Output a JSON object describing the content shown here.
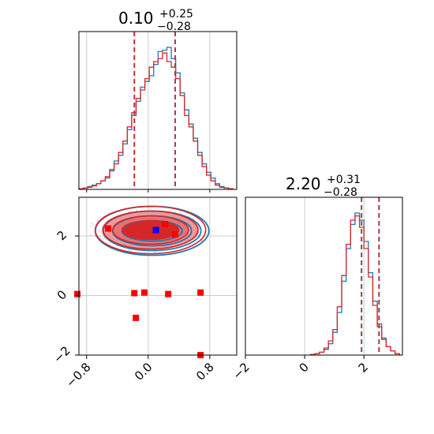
{
  "chart_data": {
    "type": "scatter",
    "kind": "corner-plot",
    "parameters": [
      {
        "median": 0.1,
        "title_main": "0.10",
        "title_plus": "+0.25",
        "title_minus": "−0.28",
        "quantile_lines": [
          -0.18,
          0.35
        ],
        "range": [
          -0.9,
          1.15
        ],
        "ticks": [
          -0.8,
          0.0,
          0.8
        ],
        "tick_labels": [
          "−0.8",
          "0.0",
          "0.8"
        ]
      },
      {
        "median": 2.2,
        "title_main": "2.20",
        "title_plus": "+0.31",
        "title_minus": "−0.28",
        "quantile_lines": [
          1.92,
          2.51
        ],
        "range": [
          -2.0,
          3.3
        ],
        "ticks": [
          -2,
          0,
          2
        ],
        "tick_labels": [
          "−2",
          "0",
          "2"
        ]
      }
    ],
    "series": [
      {
        "name": "",
        "color": "#1f77b4",
        "hist1": [
          0.5,
          1,
          2,
          3,
          4,
          6,
          8,
          13,
          20,
          24,
          32,
          42,
          52,
          62,
          72,
          76,
          80,
          88,
          97,
          98,
          100,
          92,
          82,
          68,
          56,
          46,
          36,
          26,
          18,
          12,
          8,
          4,
          2,
          1,
          0.5
        ],
        "hist2": [
          0.5,
          1,
          2,
          4,
          8,
          16,
          30,
          52,
          75,
          92,
          100,
          95,
          80,
          58,
          38,
          22,
          12,
          6,
          3,
          1
        ]
      },
      {
        "name": "",
        "color": "#d62728",
        "hist1": [
          0.5,
          1,
          1.5,
          2.5,
          4,
          6,
          9,
          14,
          18,
          26,
          34,
          44,
          54,
          64,
          70,
          78,
          86,
          90,
          92,
          96,
          90,
          86,
          78,
          66,
          52,
          44,
          34,
          24,
          16,
          10,
          6,
          3,
          1.5,
          1,
          0.5
        ],
        "hist2": [
          0.5,
          1,
          2,
          5,
          10,
          18,
          34,
          56,
          78,
          95,
          98,
          90,
          75,
          55,
          35,
          20,
          11,
          6,
          3,
          1
        ]
      }
    ],
    "contour_center": [
      0.03,
      2.2
    ],
    "true_point": [
      0.1,
      2.2
    ],
    "outlier_points": [
      [
        -0.92,
        0.05
      ],
      [
        -0.18,
        0.08
      ],
      [
        -0.05,
        0.1
      ],
      [
        0.26,
        0.05
      ],
      [
        0.68,
        0.1
      ],
      [
        -0.16,
        -0.75
      ],
      [
        0.68,
        -2.0
      ],
      [
        -0.52,
        2.25
      ],
      [
        0.22,
        2.4
      ],
      [
        0.35,
        2.05
      ]
    ],
    "colors": {
      "blue": "#1f77b4",
      "red": "#d62728",
      "marker_blue": "#0000ff",
      "marker_red": "#ff0000",
      "grid": "#cccccc",
      "axes": "#000000"
    }
  }
}
